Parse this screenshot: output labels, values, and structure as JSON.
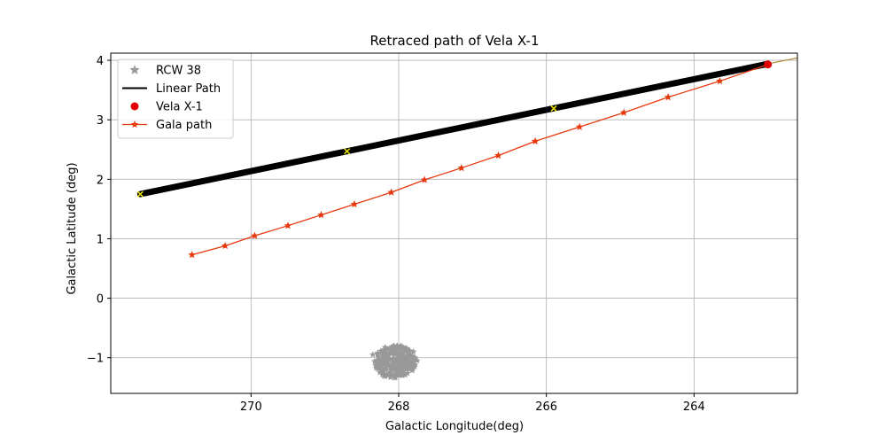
{
  "chart_data": {
    "type": "line",
    "title": "Retraced path of Vela X-1",
    "xlabel": "Galactic Longitude(deg)",
    "ylabel": "Galactic Latitude (deg)",
    "xlim": [
      271.9,
      262.6
    ],
    "ylim": [
      -1.6,
      4.12
    ],
    "x_inverted": true,
    "grid": true,
    "legend_placement": "top-left",
    "xticks": [
      270,
      268,
      266,
      264
    ],
    "yticks": [
      -1,
      0,
      1,
      2,
      3,
      4
    ],
    "series": [
      {
        "name": "RCW 38",
        "kind": "scatter",
        "marker": "star",
        "color": "#999999",
        "cluster_center": [
          268.05,
          -1.07
        ],
        "cluster_spread": [
          0.28,
          0.28
        ],
        "points": [
          [
            268.05,
            -1.07
          ],
          [
            268.2,
            -1.0
          ],
          [
            267.9,
            -1.12
          ],
          [
            268.3,
            -1.15
          ],
          [
            267.75,
            -1.05
          ],
          [
            268.1,
            -0.85
          ],
          [
            267.95,
            -1.3
          ],
          [
            268.35,
            -0.95
          ],
          [
            267.8,
            -0.9
          ],
          [
            268.0,
            -1.22
          ]
        ]
      },
      {
        "name": "Linear Path",
        "kind": "line",
        "color": "#000000",
        "x": [
          271.5,
          263.0
        ],
        "y": [
          1.75,
          3.94
        ]
      },
      {
        "name": "Vela X-1",
        "kind": "scatter",
        "marker": "circle",
        "color": "#e00000",
        "x": [
          263.0
        ],
        "y": [
          3.93
        ]
      },
      {
        "name": "Gala path",
        "kind": "line",
        "marker": "star",
        "color": "#e8380d",
        "x": [
          270.8,
          270.35,
          269.95,
          269.5,
          269.05,
          268.6,
          268.1,
          267.65,
          267.15,
          266.65,
          266.15,
          265.55,
          264.95,
          264.35,
          263.65,
          263.0
        ],
        "y": [
          0.73,
          0.88,
          1.05,
          1.22,
          1.4,
          1.58,
          1.78,
          1.99,
          2.19,
          2.4,
          2.64,
          2.88,
          3.12,
          3.38,
          3.65,
          3.93
        ]
      }
    ],
    "yellow_markers": {
      "marker": "x",
      "color": "#f2e600",
      "x": [
        271.5,
        268.7,
        265.9
      ],
      "y": [
        1.75,
        2.47,
        3.19
      ]
    },
    "extension_line": {
      "color": "#b3883a",
      "x": [
        263.0,
        262.6
      ],
      "y": [
        3.94,
        4.04
      ]
    }
  }
}
